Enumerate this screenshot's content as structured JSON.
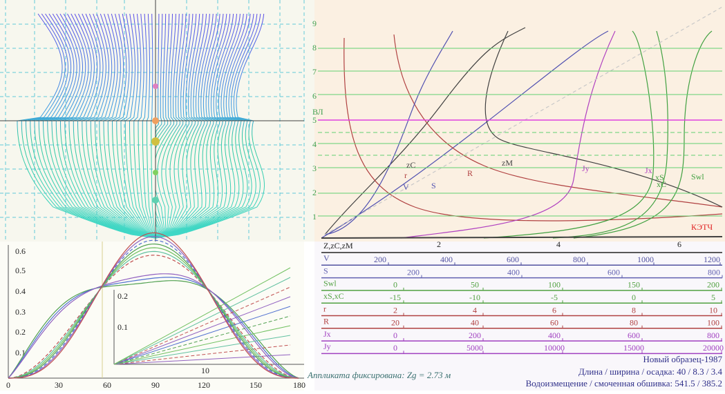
{
  "body_plan": {
    "waterline_label": "ВЛ",
    "y_labels": [
      "1",
      "2",
      "3",
      "4",
      "5",
      "6",
      "7",
      "8",
      "9"
    ]
  },
  "hydrostatics": {
    "x_labels": [
      "2",
      "4",
      "6"
    ],
    "curve_labels": [
      "zC",
      "r",
      "V",
      "S",
      "R",
      "zM",
      "Jy",
      "Jx",
      "xS",
      "xC",
      "Swl",
      "КЭТЧ"
    ]
  },
  "scales": [
    {
      "name": "Z,zC,zM",
      "ticks": []
    },
    {
      "name": "V",
      "ticks": [
        "200",
        "400",
        "600",
        "800",
        "1000",
        "1200"
      ]
    },
    {
      "name": "S",
      "ticks": [
        "200",
        "400",
        "600",
        "800"
      ]
    },
    {
      "name": "Swl",
      "ticks": [
        "0",
        "50",
        "100",
        "150",
        "200"
      ]
    },
    {
      "name": "xS,xC",
      "ticks": [
        "-15",
        "-10",
        "-5",
        "0",
        "5"
      ]
    },
    {
      "name": "r",
      "ticks": [
        "2",
        "4",
        "6",
        "8",
        "10"
      ]
    },
    {
      "name": "R",
      "ticks": [
        "20",
        "40",
        "60",
        "80",
        "100"
      ]
    },
    {
      "name": "Jx",
      "ticks": [
        "0",
        "200",
        "400",
        "600",
        "800"
      ]
    },
    {
      "name": "Jy",
      "ticks": [
        "0",
        "5000",
        "10000",
        "15000",
        "20000"
      ]
    }
  ],
  "stability": {
    "x_labels": [
      "0",
      "30",
      "60",
      "90",
      "120",
      "150",
      "180"
    ],
    "y_labels": [
      "0.1",
      "0.2",
      "0.3",
      "0.4",
      "0.5",
      "0.6"
    ],
    "inner_y_labels": [
      "0.1",
      "0.2"
    ],
    "inner_x_label": "10",
    "note": "Аппликата фиксирована: Zg = 2.73 м"
  },
  "info": {
    "name": "Новый образец-1987",
    "dimensions": "Длина / ширина / осадка:  40 / 8.3 / 3.4",
    "displacement": "Водоизмещение / смоченная обшивка:  541.5 / 385.2"
  }
}
